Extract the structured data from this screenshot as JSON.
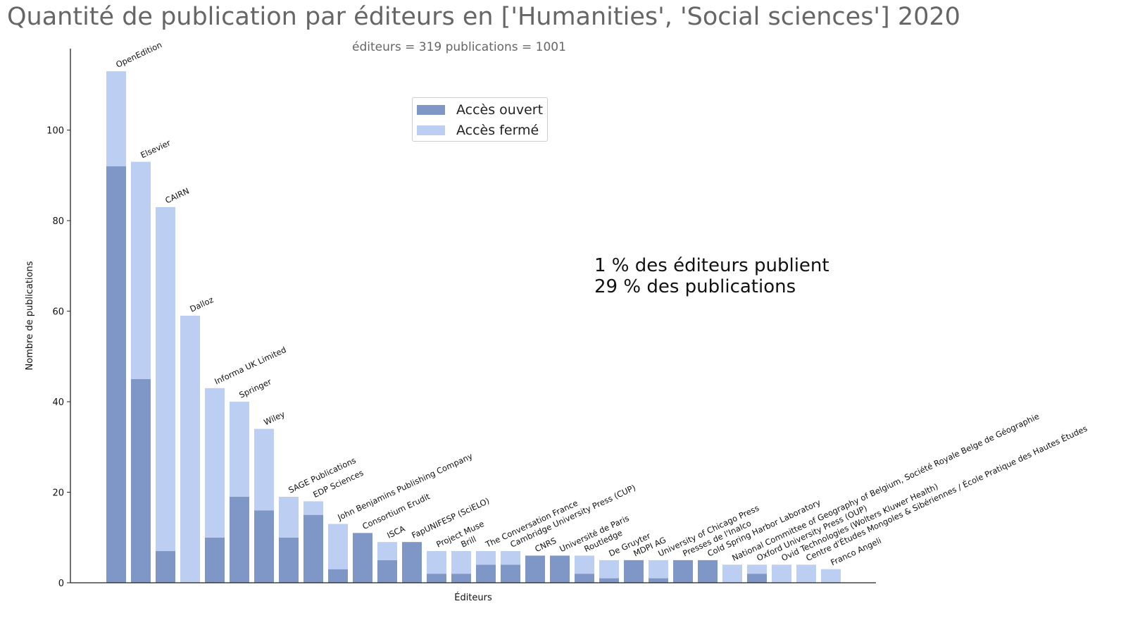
{
  "chart_data": {
    "type": "bar",
    "title": "Quantité de publication par éditeurs en ['Humanities', 'Social sciences'] 2020",
    "subtitle": "éditeurs = 319  publications = 1001",
    "xlabel": "Éditeurs",
    "ylabel": "Nombre de publications",
    "ylim": [
      0,
      118
    ],
    "yticks": [
      0,
      20,
      40,
      60,
      80,
      100
    ],
    "stacked": true,
    "legend_position": "upper-center",
    "categories": [
      "OpenEdition",
      "Elsevier",
      "CAIRN",
      "Dalloz",
      "Informa UK Limited",
      "Springer",
      "Wiley",
      "SAGE Publications",
      "EDP Sciences",
      "John Benjamins Publishing Company",
      "Consortium Erudit",
      "ISCA",
      "FapUNIFESP (SciELO)",
      "Project Muse",
      "Brill",
      "The Conversation France",
      "Cambridge University Press (CUP)",
      "CNRS",
      "Université de Paris",
      "Routledge",
      "De Gruyter",
      "MDPI AG",
      "University of Chicago Press",
      "Presses de l'Inalco",
      "Cold Spring Harbor Laboratory",
      "National Committee of Geography of Belgium, Société Royale Belge de Géographie",
      "Oxford University Press (OUP)",
      "Ovid Technologies (Wolters Kluwer Health)",
      "Centre d'Études Mongoles & Sibériennes / École Pratique des Hautes Études",
      "Franco Angeli"
    ],
    "series": [
      {
        "name": "Accès ouvert",
        "color": "#7e97c7",
        "values": [
          92,
          45,
          7,
          0,
          10,
          19,
          16,
          10,
          15,
          3,
          11,
          5,
          9,
          2,
          2,
          4,
          4,
          6,
          6,
          2,
          1,
          5,
          1,
          5,
          5,
          0,
          2,
          0,
          0,
          0
        ]
      },
      {
        "name": "Accès fermé",
        "color": "#bccff2",
        "values": [
          21,
          48,
          76,
          59,
          33,
          21,
          18,
          9,
          3,
          10,
          0,
          4,
          0,
          5,
          5,
          3,
          3,
          0,
          0,
          4,
          4,
          0,
          4,
          0,
          0,
          4,
          2,
          4,
          4,
          3
        ]
      }
    ],
    "annotation": [
      "1 % des éditeurs publient",
      "29 % des publications"
    ]
  }
}
